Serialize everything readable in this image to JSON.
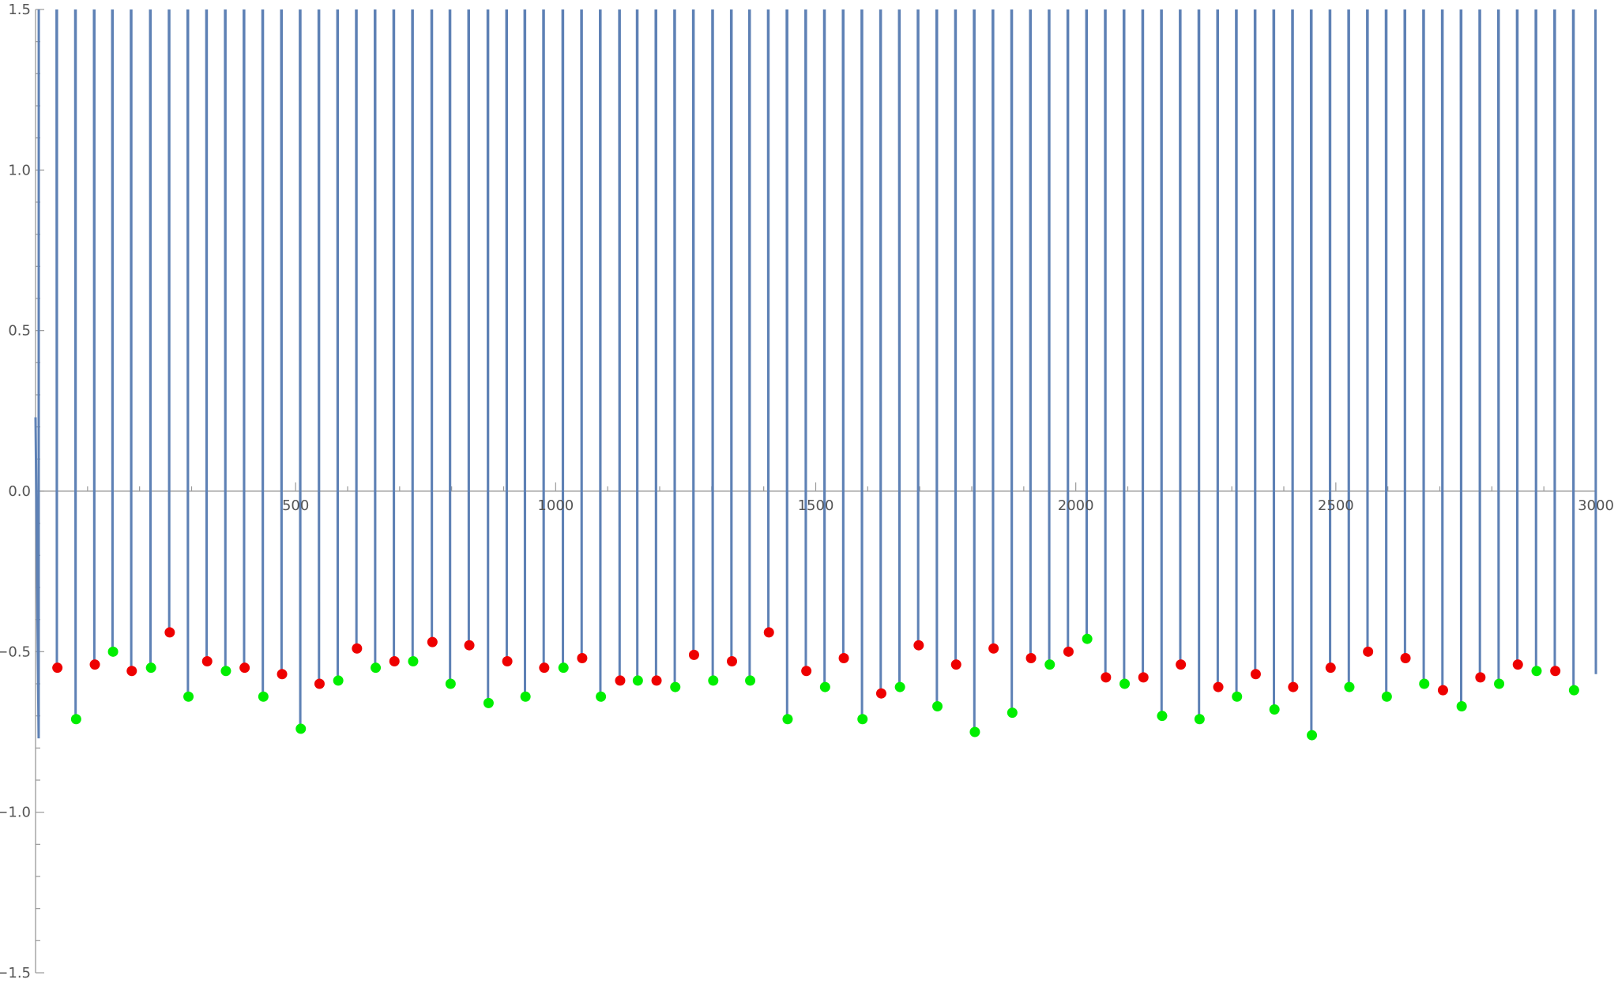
{
  "chart_data": {
    "type": "line",
    "title": "",
    "xlabel": "",
    "ylabel": "",
    "xlim": [
      0,
      3000
    ],
    "ylim": [
      -1.5,
      1.5
    ],
    "x_ticks": [
      500,
      1000,
      1500,
      2000,
      2500,
      3000
    ],
    "x_tick_labels": [
      "500",
      "1000",
      "1500",
      "2000",
      "2500",
      "3000"
    ],
    "x_minor_step": 100,
    "y_ticks": [
      -1.5,
      -1.0,
      -0.5,
      0.0,
      0.5,
      1.0,
      1.5
    ],
    "y_tick_labels": [
      "−1.5",
      "−1.0",
      "−0.5",
      "0.0",
      "0.5",
      "1.0",
      "1.5"
    ],
    "y_minor_step": 0.1,
    "grid": false,
    "legend": "none",
    "line": {
      "color": "#5e81b5",
      "start_point": [
        0,
        0.23
      ],
      "end_point": [
        3000,
        -0.57
      ],
      "note_clipped_above": 1.5
    },
    "colors": {
      "red": "#ee0000",
      "green": "#00ee00",
      "line": "#5e81b5",
      "axis": "#999999"
    },
    "series": [
      {
        "color": "red",
        "points": [
          [
            42,
            -0.55
          ],
          [
            114,
            -0.54
          ],
          [
            185,
            -0.56
          ],
          [
            258,
            -0.44
          ],
          [
            330,
            -0.53
          ],
          [
            402,
            -0.55
          ],
          [
            474,
            -0.57
          ],
          [
            546,
            -0.6
          ],
          [
            618,
            -0.49
          ],
          [
            690,
            -0.53
          ],
          [
            763,
            -0.47
          ],
          [
            834,
            -0.48
          ],
          [
            907,
            -0.53
          ],
          [
            978,
            -0.55
          ],
          [
            1051,
            -0.52
          ],
          [
            1124,
            -0.59
          ],
          [
            1194,
            -0.59
          ],
          [
            1266,
            -0.51
          ],
          [
            1339,
            -0.53
          ],
          [
            1410,
            -0.44
          ],
          [
            1482,
            -0.56
          ],
          [
            1554,
            -0.52
          ],
          [
            1626,
            -0.63
          ],
          [
            1698,
            -0.48
          ],
          [
            1770,
            -0.54
          ],
          [
            1842,
            -0.49
          ],
          [
            1914,
            -0.52
          ],
          [
            1986,
            -0.5
          ],
          [
            2058,
            -0.58
          ],
          [
            2130,
            -0.58
          ],
          [
            2202,
            -0.54
          ],
          [
            2274,
            -0.61
          ],
          [
            2346,
            -0.57
          ],
          [
            2418,
            -0.61
          ],
          [
            2490,
            -0.55
          ],
          [
            2562,
            -0.5
          ],
          [
            2634,
            -0.52
          ],
          [
            2706,
            -0.62
          ],
          [
            2778,
            -0.58
          ],
          [
            2850,
            -0.54
          ],
          [
            2922,
            -0.56
          ]
        ]
      },
      {
        "color": "green",
        "points": [
          [
            78,
            -0.71
          ],
          [
            149,
            -0.5
          ],
          [
            222,
            -0.55
          ],
          [
            294,
            -0.64
          ],
          [
            366,
            -0.56
          ],
          [
            438,
            -0.64
          ],
          [
            510,
            -0.74
          ],
          [
            582,
            -0.59
          ],
          [
            654,
            -0.55
          ],
          [
            726,
            -0.53
          ],
          [
            798,
            -0.6
          ],
          [
            871,
            -0.66
          ],
          [
            942,
            -0.64
          ],
          [
            1015,
            -0.55
          ],
          [
            1087,
            -0.64
          ],
          [
            1158,
            -0.59
          ],
          [
            1230,
            -0.61
          ],
          [
            1303,
            -0.59
          ],
          [
            1374,
            -0.59
          ],
          [
            1446,
            -0.71
          ],
          [
            1518,
            -0.61
          ],
          [
            1590,
            -0.71
          ],
          [
            1662,
            -0.61
          ],
          [
            1734,
            -0.67
          ],
          [
            1806,
            -0.75
          ],
          [
            1878,
            -0.69
          ],
          [
            1950,
            -0.54
          ],
          [
            2022,
            -0.46
          ],
          [
            2094,
            -0.6
          ],
          [
            2166,
            -0.7
          ],
          [
            2238,
            -0.71
          ],
          [
            2310,
            -0.64
          ],
          [
            2382,
            -0.68
          ],
          [
            2454,
            -0.76
          ],
          [
            2526,
            -0.61
          ],
          [
            2598,
            -0.64
          ],
          [
            2670,
            -0.6
          ],
          [
            2742,
            -0.67
          ],
          [
            2814,
            -0.6
          ],
          [
            2886,
            -0.56
          ],
          [
            2958,
            -0.62
          ]
        ]
      }
    ]
  }
}
